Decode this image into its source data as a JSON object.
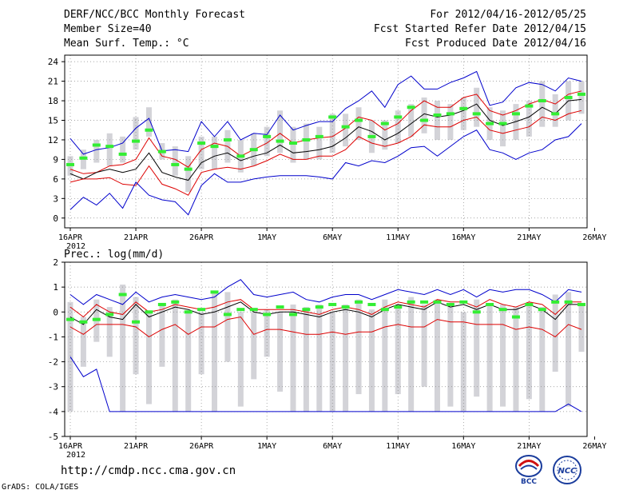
{
  "header": {
    "title": "DERF/NCC/BCC Monthly Forecast",
    "member_size": "Member Size=40",
    "variable": "Mean Surf. Temp.: °C",
    "period": "For 2012/04/16-2012/05/25",
    "started": "Fcst Started Refer Date 2012/04/15",
    "produced": "Fcst Produced Date 2012/04/16"
  },
  "footer": {
    "url": "http://cmdp.ncc.cma.gov.cn",
    "grads": "GrADS: COLA/IGES",
    "logo_bcc_text": "BCC",
    "logo_ncc_text": "NCC"
  },
  "colors": {
    "max_min": "#0000cc",
    "spread": "#dd0000",
    "mean": "#000000",
    "climate": "#33ee33",
    "box": "#d3d3d8"
  },
  "chart_data": [
    {
      "type": "line",
      "title": "Mean Surf. Temp.: °C",
      "ylim": [
        -1.5,
        25
      ],
      "yticks": [
        "0",
        "3",
        "6",
        "9",
        "12",
        "15",
        "18",
        "21",
        "24"
      ],
      "xticks": [
        "16APR",
        "21APR",
        "26APR",
        "1MAY",
        "6MAY",
        "11MAY",
        "16MAY",
        "21MAY",
        "26MAY"
      ],
      "xtick_year": "2012",
      "days": 40,
      "series": [
        {
          "name": "max",
          "values": [
            12.2,
            9.8,
            10.5,
            10.8,
            11.5,
            13.8,
            15.3,
            10.3,
            10.5,
            10.2,
            14.8,
            12.5,
            14.8,
            12.0,
            13.0,
            12.8,
            15.8,
            13.5,
            14.2,
            14.8,
            14.8,
            16.8,
            18.0,
            19.5,
            17.0,
            20.5,
            21.8,
            19.8,
            19.8,
            20.8,
            21.5,
            22.5,
            17.3,
            17.8,
            20.0,
            20.8,
            20.5,
            19.5,
            21.5,
            21.0
          ]
        },
        {
          "name": "spread_upper",
          "values": [
            7.5,
            6.8,
            7.0,
            8.0,
            8.2,
            9.0,
            12.3,
            9.5,
            9.0,
            7.8,
            10.5,
            11.5,
            11.0,
            9.5,
            10.5,
            11.5,
            13.0,
            11.5,
            12.0,
            12.3,
            12.5,
            13.8,
            15.5,
            15.0,
            13.5,
            14.5,
            16.5,
            18.0,
            17.0,
            17.0,
            18.5,
            19.0,
            16.5,
            15.8,
            16.5,
            17.5,
            18.2,
            17.5,
            19.0,
            19.5
          ]
        },
        {
          "name": "mean",
          "values": [
            6.8,
            6.0,
            7.0,
            7.5,
            7.0,
            7.5,
            10.0,
            7.0,
            6.3,
            5.8,
            8.5,
            9.5,
            10.0,
            8.8,
            9.5,
            10.0,
            11.2,
            10.0,
            10.2,
            10.5,
            11.0,
            12.3,
            14.0,
            13.3,
            12.0,
            13.0,
            14.5,
            16.0,
            15.5,
            15.8,
            16.5,
            17.5,
            15.0,
            14.2,
            14.8,
            15.5,
            17.0,
            16.0,
            18.0,
            18.2
          ]
        },
        {
          "name": "spread_lower",
          "values": [
            5.5,
            6.0,
            6.0,
            6.2,
            5.2,
            5.0,
            8.0,
            5.2,
            4.5,
            3.5,
            7.0,
            7.5,
            7.8,
            7.5,
            8.0,
            8.8,
            9.8,
            9.0,
            9.0,
            9.5,
            9.5,
            10.5,
            12.5,
            11.5,
            11.0,
            11.5,
            12.5,
            14.3,
            14.0,
            14.0,
            15.0,
            15.5,
            13.5,
            13.0,
            13.5,
            14.0,
            15.5,
            15.0,
            16.0,
            16.5
          ]
        },
        {
          "name": "min",
          "values": [
            1.3,
            3.2,
            2.0,
            3.8,
            1.5,
            5.5,
            3.5,
            2.8,
            2.5,
            0.5,
            5.0,
            6.8,
            5.5,
            5.5,
            6.0,
            6.3,
            6.5,
            6.5,
            6.5,
            6.3,
            6.0,
            8.5,
            8.0,
            8.8,
            8.5,
            9.5,
            10.8,
            11.0,
            9.5,
            11.0,
            12.5,
            13.5,
            10.5,
            10.0,
            9.0,
            10.0,
            10.5,
            12.0,
            12.5,
            14.5
          ]
        },
        {
          "name": "climate",
          "values": [
            8.2,
            9.2,
            11.2,
            11.0,
            9.8,
            11.8,
            13.5,
            10.2,
            8.2,
            7.5,
            11.5,
            11.0,
            12.0,
            9.5,
            10.5,
            12.5,
            11.8,
            11.5,
            12.0,
            12.5,
            15.5,
            14.0,
            15.0,
            12.5,
            14.5,
            15.5,
            17.0,
            15.0,
            15.8,
            16.0,
            16.8,
            16.0,
            14.5,
            14.5,
            16.0,
            17.2,
            18.0,
            16.0,
            18.5,
            19.0
          ]
        }
      ],
      "box_ranges": [
        [
          6.5,
          9.5
        ],
        [
          7.5,
          10.5
        ],
        [
          8.5,
          12.0
        ],
        [
          8.0,
          13.0
        ],
        [
          8.5,
          12.5
        ],
        [
          10.5,
          15.5
        ],
        [
          12.5,
          17.0
        ],
        [
          9.0,
          11.5
        ],
        [
          6.5,
          11.0
        ],
        [
          4.0,
          9.5
        ],
        [
          7.5,
          12.5
        ],
        [
          7.5,
          12.5
        ],
        [
          8.5,
          13.5
        ],
        [
          7.0,
          12.0
        ],
        [
          8.0,
          13.0
        ],
        [
          9.5,
          14.0
        ],
        [
          10.0,
          16.5
        ],
        [
          8.5,
          14.0
        ],
        [
          9.0,
          14.5
        ],
        [
          9.0,
          14.0
        ],
        [
          10.0,
          16.0
        ],
        [
          11.0,
          16.0
        ],
        [
          12.0,
          17.0
        ],
        [
          10.0,
          15.0
        ],
        [
          10.5,
          15.0
        ],
        [
          11.5,
          16.5
        ],
        [
          12.5,
          17.5
        ],
        [
          13.0,
          18.5
        ],
        [
          12.0,
          18.0
        ],
        [
          12.0,
          17.5
        ],
        [
          13.5,
          18.5
        ],
        [
          14.0,
          20.0
        ],
        [
          12.0,
          17.0
        ],
        [
          11.0,
          16.5
        ],
        [
          12.0,
          17.5
        ],
        [
          12.5,
          18.0
        ],
        [
          14.0,
          21.0
        ],
        [
          14.0,
          19.0
        ],
        [
          15.0,
          21.0
        ],
        [
          16.0,
          21.0
        ]
      ]
    },
    {
      "type": "line",
      "title": "Prec.: log(mm/d)",
      "ylim": [
        -5,
        2
      ],
      "yticks": [
        "-5",
        "-4",
        "-3",
        "-2",
        "-1",
        "0",
        "1",
        "2"
      ],
      "xticks": [
        "16APR",
        "21APR",
        "26APR",
        "1MAY",
        "6MAY",
        "11MAY",
        "16MAY",
        "21MAY",
        "26MAY"
      ],
      "xtick_year": "2012",
      "days": 40,
      "series": [
        {
          "name": "max",
          "values": [
            0.7,
            0.3,
            0.7,
            0.5,
            0.3,
            0.8,
            0.4,
            0.6,
            0.7,
            0.6,
            0.5,
            0.6,
            1.0,
            1.3,
            0.7,
            0.6,
            0.7,
            0.8,
            0.5,
            0.4,
            0.6,
            0.7,
            0.7,
            0.5,
            0.7,
            0.9,
            0.8,
            0.7,
            0.9,
            0.7,
            0.9,
            0.6,
            0.9,
            0.8,
            0.9,
            0.9,
            0.7,
            0.4,
            0.9,
            0.8
          ]
        },
        {
          "name": "spread_upper",
          "values": [
            0.2,
            -0.2,
            0.3,
            0.0,
            -0.1,
            0.4,
            0.0,
            0.1,
            0.3,
            0.2,
            0.1,
            0.2,
            0.4,
            0.5,
            0.1,
            0.1,
            0.1,
            0.1,
            0.0,
            -0.1,
            0.1,
            0.2,
            0.1,
            -0.1,
            0.2,
            0.4,
            0.3,
            0.2,
            0.5,
            0.4,
            0.4,
            0.2,
            0.5,
            0.3,
            0.2,
            0.4,
            0.3,
            -0.1,
            0.4,
            0.4
          ]
        },
        {
          "name": "mean",
          "values": [
            -0.2,
            -0.5,
            0.1,
            -0.2,
            -0.3,
            0.3,
            -0.2,
            0.0,
            0.2,
            0.1,
            -0.1,
            0.0,
            0.2,
            0.4,
            0.0,
            -0.1,
            0.0,
            0.0,
            -0.1,
            -0.2,
            0.0,
            0.1,
            0.0,
            -0.2,
            0.1,
            0.3,
            0.2,
            0.1,
            0.4,
            0.2,
            0.3,
            0.1,
            0.3,
            0.1,
            0.1,
            0.3,
            0.1,
            -0.3,
            0.3,
            0.3
          ]
        },
        {
          "name": "spread_lower",
          "values": [
            -0.6,
            -0.9,
            -0.5,
            -0.5,
            -0.5,
            -0.6,
            -1.0,
            -0.7,
            -0.5,
            -0.9,
            -0.6,
            -0.6,
            -0.3,
            -0.2,
            -0.9,
            -0.7,
            -0.7,
            -0.8,
            -0.9,
            -0.9,
            -0.8,
            -0.9,
            -0.8,
            -0.8,
            -0.6,
            -0.5,
            -0.6,
            -0.6,
            -0.3,
            -0.4,
            -0.4,
            -0.5,
            -0.5,
            -0.5,
            -0.7,
            -0.6,
            -0.7,
            -1.0,
            -0.5,
            -0.7
          ]
        },
        {
          "name": "min",
          "values": [
            -1.8,
            -2.6,
            -2.3,
            -4.0,
            -4.0,
            -4.0,
            -4.0,
            -4.0,
            -4.0,
            -4.0,
            -4.0,
            -4.0,
            -4.0,
            -4.0,
            -4.0,
            -4.0,
            -4.0,
            -4.0,
            -4.0,
            -4.0,
            -4.0,
            -4.0,
            -4.0,
            -4.0,
            -4.0,
            -4.0,
            -4.0,
            -4.0,
            -4.0,
            -4.0,
            -4.0,
            -4.0,
            -4.0,
            -4.0,
            -4.0,
            -4.0,
            -4.0,
            -4.0,
            -3.7,
            -4.0
          ]
        },
        {
          "name": "climate",
          "values": [
            -0.3,
            -0.4,
            -0.3,
            -0.1,
            0.7,
            -0.4,
            0.0,
            0.3,
            0.4,
            0.0,
            0.1,
            0.8,
            -0.1,
            0.1,
            0.1,
            -0.1,
            0.2,
            -0.1,
            0.1,
            0.2,
            0.3,
            0.2,
            0.4,
            0.3,
            0.1,
            0.2,
            0.4,
            0.4,
            0.4,
            0.3,
            0.4,
            0.0,
            0.3,
            0.1,
            -0.2,
            0.3,
            0.1,
            0.4,
            0.4,
            0.3
          ]
        }
      ],
      "box_ranges": [
        [
          -4.0,
          0.4
        ],
        [
          -2.2,
          -0.2
        ],
        [
          -1.2,
          0.5
        ],
        [
          -1.8,
          0.2
        ],
        [
          -4.0,
          1.1
        ],
        [
          -2.5,
          0.6
        ],
        [
          -3.7,
          0.0
        ],
        [
          -2.2,
          0.3
        ],
        [
          -4.0,
          0.5
        ],
        [
          -4.0,
          0.0
        ],
        [
          -2.5,
          0.0
        ],
        [
          -4.0,
          0.8
        ],
        [
          -2.0,
          0.8
        ],
        [
          -3.8,
          0.0
        ],
        [
          -2.7,
          0.0
        ],
        [
          -1.8,
          0.1
        ],
        [
          -3.2,
          0.0
        ],
        [
          -4.0,
          0.3
        ],
        [
          -4.0,
          0.2
        ],
        [
          -4.0,
          0.3
        ],
        [
          -4.0,
          0.0
        ],
        [
          -4.0,
          0.3
        ],
        [
          -3.3,
          0.5
        ],
        [
          -4.0,
          0.1
        ],
        [
          -4.0,
          0.5
        ],
        [
          -3.3,
          0.3
        ],
        [
          -4.0,
          0.6
        ],
        [
          -3.0,
          0.3
        ],
        [
          -4.0,
          0.5
        ],
        [
          -3.8,
          0.2
        ],
        [
          -4.0,
          0.0
        ],
        [
          -3.4,
          0.5
        ],
        [
          -4.0,
          0.3
        ],
        [
          -3.8,
          0.3
        ],
        [
          -4.0,
          0.2
        ],
        [
          -3.5,
          0.4
        ],
        [
          -4.0,
          0.2
        ],
        [
          -2.4,
          0.7
        ],
        [
          -3.8,
          0.8
        ],
        [
          -1.6,
          0.3
        ]
      ]
    }
  ]
}
